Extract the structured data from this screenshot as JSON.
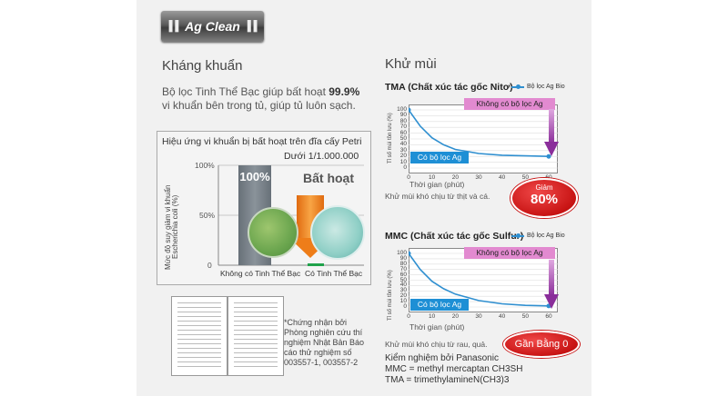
{
  "logo": {
    "text": "Ag Clean"
  },
  "left": {
    "heading": "Kháng khuẩn",
    "desc_pre": "Bộ lọc Tinh Thể Bạc giúp bất hoạt ",
    "desc_pct": "99.9%",
    "desc_post": "vi khuẩn bên trong tủ, giúp tủ luôn sạch.",
    "chart_subtitle": "Hiệu ứng vi khuẩn bị bất hoạt trên đĩa cấy Petri",
    "chart_note": "Dưới 1/1.000.000",
    "yaxis_title": "Mức độ suy giảm vi khuẩn Escherichia coli (%)",
    "bar1_label": "100%",
    "bar2_label": "Bất hoạt",
    "x1": "Không có Tinh Thể Bạc",
    "x2": "Có Tinh Thể Bạc",
    "cert_text": "*Chứng nhận bởi Phòng nghiên cứu thí nghiệm Nhật Bản Báo cáo thử nghiệm số 003557-1, 003557-2"
  },
  "right": {
    "heading": "Khử mùi",
    "chart1_title": "TMA (Chất xúc tác gốc Nitơ)",
    "chart2_title": "MMC (Chất xúc tác gốc Sulfur)",
    "legend": "Bộ lọc Ag Bio",
    "no_filter": "Không có bộ lọc Ag",
    "with_filter": "Có bộ lọc Ag",
    "xlabel": "Thời gian (phút)",
    "ylabel": "Tỉ số mùi tồn lưu (%)",
    "caption1": "Khử mùi khó chịu từ thịt và cá.",
    "caption2": "Khử mùi khó chịu từ rau, quả.",
    "badge1_top": "Giảm",
    "badge1_big": "80%",
    "badge2": "Gần Bằng 0",
    "footer1": "Kiểm nghiệm bởi Panasonic",
    "footer2": "MMC = methyl mercaptan CH3SH",
    "footer3": "TMA = trimethylamineN(CH3)3"
  },
  "chart_data": [
    {
      "type": "bar",
      "categories": [
        "Không có Tinh Thể Bạc",
        "Có Tinh Thể Bạc"
      ],
      "values": [
        100,
        0.0001
      ],
      "ylim": [
        0,
        100
      ],
      "yticks": [
        "0",
        "50%",
        "100%"
      ]
    },
    {
      "type": "line",
      "title": "TMA (Chất xúc tác gốc Nitơ)",
      "xlabel": "Thời gian (phút)",
      "ylabel": "Tỉ số mùi tồn lưu (%)",
      "xlim": [
        0,
        60
      ],
      "ylim": [
        0,
        100
      ],
      "xticks": [
        0,
        10,
        20,
        30,
        40,
        50,
        60
      ],
      "yticks": [
        0,
        10,
        20,
        30,
        40,
        50,
        60,
        70,
        80,
        90,
        100
      ],
      "series": [
        {
          "name": "Bộ lọc Ag Bio",
          "x": [
            0,
            5,
            10,
            15,
            20,
            30,
            40,
            50,
            60
          ],
          "y": [
            100,
            72,
            52,
            40,
            32,
            25,
            22,
            21,
            20
          ]
        }
      ]
    },
    {
      "type": "line",
      "title": "MMC (Chất xúc tác gốc Sulfur)",
      "xlabel": "Thời gian (phút)",
      "ylabel": "Tỉ số mùi tồn lưu (%)",
      "xlim": [
        0,
        60
      ],
      "ylim": [
        0,
        100
      ],
      "xticks": [
        0,
        10,
        20,
        30,
        40,
        50,
        60
      ],
      "yticks": [
        0,
        10,
        20,
        30,
        40,
        50,
        60,
        70,
        80,
        90,
        100
      ],
      "series": [
        {
          "name": "Bộ lọc Ag Bio",
          "x": [
            0,
            5,
            10,
            15,
            20,
            30,
            40,
            50,
            60
          ],
          "y": [
            100,
            70,
            48,
            34,
            24,
            12,
            6,
            3,
            2
          ]
        }
      ]
    }
  ]
}
